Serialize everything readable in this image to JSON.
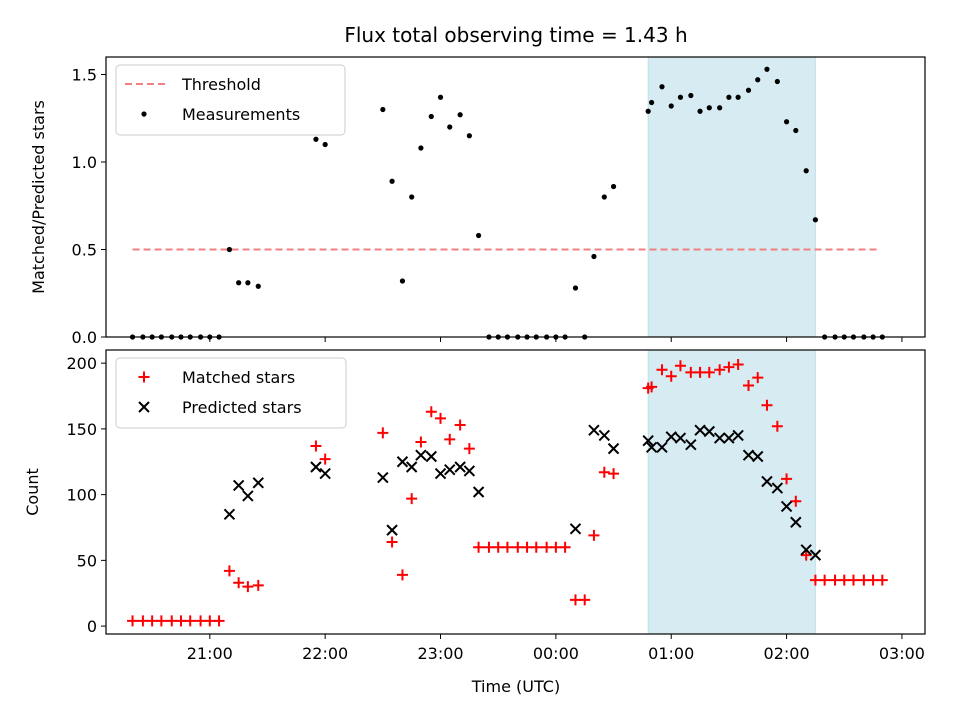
{
  "chart_data": {
    "type": "scatter",
    "title": "Flux total observing time = 1.43 h",
    "xlabel": "Time (UTC)",
    "x_unit": "hours since 20:00 UTC",
    "xlim": [
      0.1,
      7.2
    ],
    "x_ticks": [
      {
        "value": 1,
        "label": "21:00"
      },
      {
        "value": 2,
        "label": "22:00"
      },
      {
        "value": 3,
        "label": "23:00"
      },
      {
        "value": 4,
        "label": "00:00"
      },
      {
        "value": 5,
        "label": "01:00"
      },
      {
        "value": 6,
        "label": "02:00"
      },
      {
        "value": 7,
        "label": "03:00"
      }
    ],
    "shaded_span": [
      4.8,
      6.25
    ],
    "shaded_color": "#add8e6",
    "panels": [
      {
        "ylabel": "Matched/Predicted stars",
        "ylim": [
          0,
          1.6
        ],
        "y_ticks": [
          {
            "value": 0,
            "label": "0.0"
          },
          {
            "value": 0.5,
            "label": "0.5"
          },
          {
            "value": 1.0,
            "label": "1.0"
          },
          {
            "value": 1.5,
            "label": "1.5"
          }
        ],
        "legend": [
          {
            "label": "Threshold",
            "marker": "dashed-line",
            "color": "#f08080"
          },
          {
            "label": "Measurements",
            "marker": "dot",
            "color": "#000000"
          }
        ],
        "threshold": {
          "value": 0.5,
          "x_range": [
            0.33,
            6.8
          ],
          "color": "#f08080"
        },
        "series": [
          {
            "name": "Measurements",
            "marker": "dot",
            "color": "#000000",
            "points": [
              [
                0.33,
                0
              ],
              [
                0.42,
                0
              ],
              [
                0.5,
                0
              ],
              [
                0.58,
                0
              ],
              [
                0.67,
                0
              ],
              [
                0.75,
                0
              ],
              [
                0.83,
                0
              ],
              [
                0.92,
                0
              ],
              [
                1.0,
                0
              ],
              [
                1.08,
                0
              ],
              [
                1.17,
                0.5
              ],
              [
                1.25,
                0.31
              ],
              [
                1.33,
                0.31
              ],
              [
                1.42,
                0.29
              ],
              [
                1.92,
                1.13
              ],
              [
                2.0,
                1.1
              ],
              [
                2.5,
                1.3
              ],
              [
                2.58,
                0.89
              ],
              [
                2.67,
                0.32
              ],
              [
                2.75,
                0.8
              ],
              [
                2.83,
                1.08
              ],
              [
                2.92,
                1.26
              ],
              [
                3.0,
                1.37
              ],
              [
                3.08,
                1.2
              ],
              [
                3.17,
                1.27
              ],
              [
                3.25,
                1.15
              ],
              [
                3.33,
                0.58
              ],
              [
                3.42,
                0
              ],
              [
                3.5,
                0
              ],
              [
                3.58,
                0
              ],
              [
                3.67,
                0
              ],
              [
                3.75,
                0
              ],
              [
                3.83,
                0
              ],
              [
                3.92,
                0
              ],
              [
                4.0,
                0
              ],
              [
                4.08,
                0
              ],
              [
                4.17,
                0.28
              ],
              [
                4.25,
                0
              ],
              [
                4.33,
                0.46
              ],
              [
                4.42,
                0.8
              ],
              [
                4.5,
                0.86
              ],
              [
                4.8,
                1.29
              ],
              [
                4.83,
                1.34
              ],
              [
                4.92,
                1.43
              ],
              [
                5.0,
                1.32
              ],
              [
                5.08,
                1.37
              ],
              [
                5.17,
                1.38
              ],
              [
                5.25,
                1.29
              ],
              [
                5.33,
                1.31
              ],
              [
                5.42,
                1.31
              ],
              [
                5.5,
                1.37
              ],
              [
                5.58,
                1.37
              ],
              [
                5.67,
                1.41
              ],
              [
                5.75,
                1.47
              ],
              [
                5.83,
                1.53
              ],
              [
                5.92,
                1.46
              ],
              [
                6.0,
                1.23
              ],
              [
                6.08,
                1.18
              ],
              [
                6.17,
                0.95
              ],
              [
                6.25,
                0.67
              ],
              [
                6.33,
                0
              ],
              [
                6.42,
                0
              ],
              [
                6.5,
                0
              ],
              [
                6.58,
                0
              ],
              [
                6.67,
                0
              ],
              [
                6.75,
                0
              ],
              [
                6.83,
                0
              ]
            ]
          }
        ]
      },
      {
        "ylabel": "Count",
        "ylim": [
          -6,
          210
        ],
        "y_ticks": [
          {
            "value": 0,
            "label": "0"
          },
          {
            "value": 50,
            "label": "50"
          },
          {
            "value": 100,
            "label": "100"
          },
          {
            "value": 150,
            "label": "150"
          },
          {
            "value": 200,
            "label": "200"
          }
        ],
        "legend": [
          {
            "label": "Matched stars",
            "marker": "plus",
            "color": "#ff0000"
          },
          {
            "label": "Predicted stars",
            "marker": "x",
            "color": "#000000"
          }
        ],
        "series": [
          {
            "name": "Matched stars",
            "marker": "plus",
            "color": "#ff0000",
            "points": [
              [
                0.33,
                4
              ],
              [
                0.42,
                4
              ],
              [
                0.5,
                4
              ],
              [
                0.58,
                4
              ],
              [
                0.67,
                4
              ],
              [
                0.75,
                4
              ],
              [
                0.83,
                4
              ],
              [
                0.92,
                4
              ],
              [
                1.0,
                4
              ],
              [
                1.08,
                4
              ],
              [
                1.17,
                42
              ],
              [
                1.25,
                33
              ],
              [
                1.33,
                30
              ],
              [
                1.42,
                31
              ],
              [
                1.92,
                137
              ],
              [
                2.0,
                127
              ],
              [
                2.5,
                147
              ],
              [
                2.58,
                64
              ],
              [
                2.67,
                39
              ],
              [
                2.75,
                97
              ],
              [
                2.83,
                140
              ],
              [
                2.92,
                163
              ],
              [
                3.0,
                158
              ],
              [
                3.08,
                142
              ],
              [
                3.17,
                153
              ],
              [
                3.25,
                135
              ],
              [
                3.33,
                60
              ],
              [
                3.42,
                60
              ],
              [
                3.5,
                60
              ],
              [
                3.58,
                60
              ],
              [
                3.67,
                60
              ],
              [
                3.75,
                60
              ],
              [
                3.83,
                60
              ],
              [
                3.92,
                60
              ],
              [
                4.0,
                60
              ],
              [
                4.08,
                60
              ],
              [
                4.17,
                20
              ],
              [
                4.25,
                20
              ],
              [
                4.33,
                69
              ],
              [
                4.42,
                117
              ],
              [
                4.5,
                116
              ],
              [
                4.8,
                181
              ],
              [
                4.83,
                182
              ],
              [
                4.92,
                195
              ],
              [
                5.0,
                190
              ],
              [
                5.08,
                198
              ],
              [
                5.17,
                193
              ],
              [
                5.25,
                193
              ],
              [
                5.33,
                193
              ],
              [
                5.42,
                195
              ],
              [
                5.5,
                197
              ],
              [
                5.58,
                199
              ],
              [
                5.67,
                183
              ],
              [
                5.75,
                189
              ],
              [
                5.83,
                168
              ],
              [
                5.92,
                152
              ],
              [
                6.0,
                112
              ],
              [
                6.08,
                95
              ],
              [
                6.17,
                54
              ],
              [
                6.25,
                35
              ],
              [
                6.33,
                35
              ],
              [
                6.42,
                35
              ],
              [
                6.5,
                35
              ],
              [
                6.58,
                35
              ],
              [
                6.67,
                35
              ],
              [
                6.75,
                35
              ],
              [
                6.83,
                35
              ]
            ]
          },
          {
            "name": "Predicted stars",
            "marker": "x",
            "color": "#000000",
            "points": [
              [
                1.17,
                85
              ],
              [
                1.25,
                107
              ],
              [
                1.33,
                99
              ],
              [
                1.42,
                109
              ],
              [
                1.92,
                121
              ],
              [
                2.0,
                116
              ],
              [
                2.5,
                113
              ],
              [
                2.58,
                73
              ],
              [
                2.67,
                125
              ],
              [
                2.75,
                121
              ],
              [
                2.83,
                130
              ],
              [
                2.92,
                129
              ],
              [
                3.0,
                116
              ],
              [
                3.08,
                119
              ],
              [
                3.17,
                121
              ],
              [
                3.25,
                118
              ],
              [
                3.33,
                102
              ],
              [
                4.17,
                74
              ],
              [
                4.33,
                149
              ],
              [
                4.42,
                145
              ],
              [
                4.5,
                135
              ],
              [
                4.8,
                141
              ],
              [
                4.83,
                136
              ],
              [
                4.92,
                136
              ],
              [
                5.0,
                144
              ],
              [
                5.08,
                143
              ],
              [
                5.17,
                138
              ],
              [
                5.25,
                149
              ],
              [
                5.33,
                148
              ],
              [
                5.42,
                143
              ],
              [
                5.5,
                143
              ],
              [
                5.58,
                145
              ],
              [
                5.67,
                130
              ],
              [
                5.75,
                129
              ],
              [
                5.83,
                110
              ],
              [
                5.92,
                105
              ],
              [
                6.0,
                91
              ],
              [
                6.08,
                79
              ],
              [
                6.17,
                58
              ],
              [
                6.25,
                54
              ]
            ]
          }
        ]
      }
    ]
  }
}
